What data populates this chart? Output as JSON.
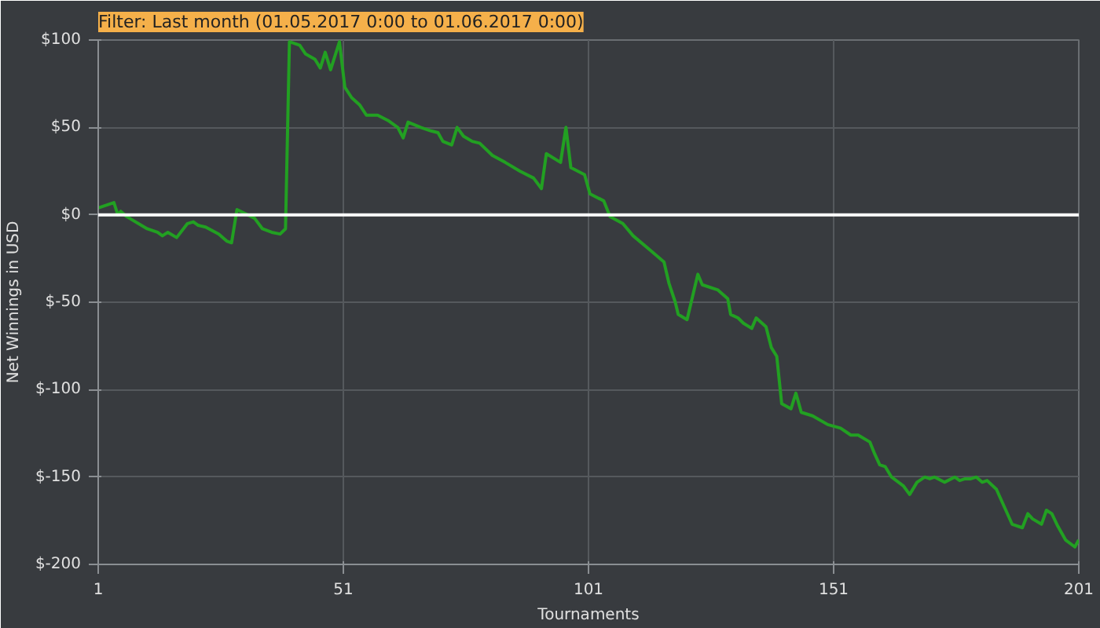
{
  "chart_data": {
    "type": "line",
    "title": "Filter: Last month (01.05.2017 0:00 to 01.06.2017 0:00)",
    "xlabel": "Tournaments",
    "ylabel": "Net Winnings in USD",
    "xlim": [
      1,
      201
    ],
    "xticks": [
      1,
      51,
      101,
      151,
      201
    ],
    "ylim": [
      -200,
      100
    ],
    "yticks": [
      {
        "value": 100,
        "label": "$100"
      },
      {
        "value": 50,
        "label": "$50"
      },
      {
        "value": 0,
        "label": "$0"
      },
      {
        "value": -50,
        "label": "$-50"
      },
      {
        "value": -100,
        "label": "$-100"
      },
      {
        "value": -150,
        "label": "$-150"
      },
      {
        "value": -200,
        "label": "$-200"
      }
    ],
    "grid": true,
    "marker": "none",
    "line_style": "solid",
    "ref_lines": [
      {
        "axis": "y",
        "value": 0,
        "color": "#ffffff"
      }
    ],
    "series": [
      {
        "color": "#22a022",
        "x": [
          1,
          4.2,
          5,
          5.6,
          6.8,
          11,
          13.1,
          14.1,
          15.2,
          17,
          19.2,
          20.4,
          21.4,
          22.9,
          25.6,
          27.2,
          28.2,
          29.3,
          30.8,
          32.9,
          34.5,
          36.4,
          38.1,
          39.2,
          40,
          42.1,
          43.3,
          45.2,
          46.3,
          47.3,
          48.4,
          50.2,
          51.3,
          52.7,
          54.3,
          55.7,
          58,
          60.1,
          62.1,
          63.2,
          64.2,
          66.8,
          68.9,
          70.3,
          71.3,
          73.1,
          74.2,
          75.5,
          77.3,
          78.8,
          81.4,
          84,
          87,
          89.8,
          91.4,
          92.4,
          95.3,
          96.4,
          97.4,
          100.2,
          101.3,
          104.1,
          105.4,
          108,
          110.1,
          113.5,
          116.4,
          117.4,
          118.7,
          119.3,
          121.1,
          123.3,
          124.2,
          127.4,
          129.4,
          130,
          131.5,
          132.6,
          134.3,
          135.2,
          137.2,
          138.3,
          139.4,
          140.4,
          142.3,
          143.3,
          144.4,
          146.7,
          149.8,
          152.4,
          154.5,
          156,
          158.4,
          159.4,
          160.4,
          161.5,
          162.8,
          165.2,
          166.5,
          168,
          169.6,
          170.6,
          171.6,
          173.6,
          175.7,
          176.7,
          177.8,
          179,
          180.1,
          181.3,
          182.3,
          184.2,
          185.8,
          187.4,
          189.5,
          190.6,
          191.6,
          193.4,
          194.4,
          195.5,
          196.7,
          198.3,
          200.2,
          201
        ],
        "values": [
          4,
          7,
          0,
          2,
          -1,
          -8,
          -10,
          -12,
          -10,
          -13,
          -5,
          -4,
          -6,
          -7,
          -11,
          -15,
          -16,
          3,
          1,
          -2,
          -8,
          -10,
          -11,
          -8,
          99,
          97,
          92,
          89,
          84,
          93,
          83,
          99,
          73,
          67,
          63,
          57,
          57,
          54,
          50,
          44,
          53,
          50,
          48,
          47,
          42,
          40,
          50,
          45,
          42,
          41,
          34,
          30,
          25,
          21,
          15,
          35,
          30,
          50,
          27,
          23,
          12,
          8,
          -1,
          -5,
          -12,
          -20,
          -27,
          -39,
          -50,
          -57,
          -60,
          -34,
          -40,
          -43,
          -48,
          -57,
          -59,
          -62,
          -65,
          -59,
          -64,
          -76,
          -81,
          -108,
          -111,
          -102,
          -113,
          -115,
          -120,
          -122,
          -126,
          -126,
          -130,
          -137,
          -143,
          -144,
          -150,
          -155,
          -160,
          -153,
          -150,
          -151,
          -150,
          -153,
          -150,
          -152,
          -151,
          -151,
          -150,
          -153,
          -152,
          -157,
          -167,
          -177,
          -179,
          -171,
          -174,
          -177,
          -169,
          -171,
          -178,
          -186,
          -190,
          -186
        ]
      }
    ]
  }
}
